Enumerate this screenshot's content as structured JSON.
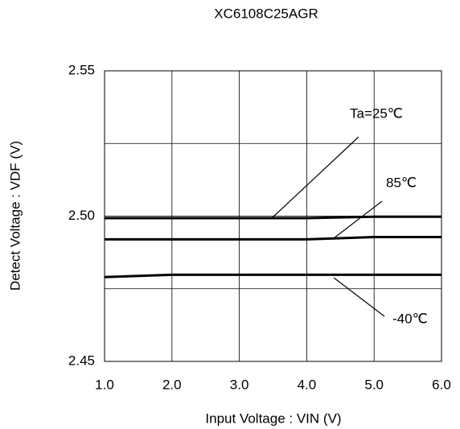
{
  "chart_data": {
    "type": "line",
    "title": "XC6108C25AGR",
    "x_label": "Input Voltage : VIN (V)",
    "y_label": "Detect Voltage : VDF (V)",
    "x": [
      1.0,
      2.0,
      3.0,
      4.0,
      5.0,
      6.0
    ],
    "series": [
      {
        "name": "Ta=25℃",
        "color": "#000000",
        "values": [
          2.4993,
          2.4993,
          2.4993,
          2.4993,
          2.4998,
          2.4998
        ]
      },
      {
        "name": "85℃",
        "color": "#000000",
        "values": [
          2.492,
          2.492,
          2.492,
          2.492,
          2.4928,
          2.4928
        ]
      },
      {
        "name": "-40℃",
        "color": "#000000",
        "values": [
          2.479,
          2.4798,
          2.4798,
          2.4798,
          2.4798,
          2.4798
        ]
      }
    ],
    "xlim": [
      1.0,
      6.0
    ],
    "ylim": [
      2.45,
      2.55
    ],
    "xticks": [
      {
        "value": 1.0,
        "label": "1.0"
      },
      {
        "value": 2.0,
        "label": "2.0"
      },
      {
        "value": 3.0,
        "label": "3.0"
      },
      {
        "value": 4.0,
        "label": "4.0"
      },
      {
        "value": 5.0,
        "label": "5.0"
      },
      {
        "value": 6.0,
        "label": "6.0"
      }
    ],
    "yticks": [
      2.45,
      {
        "value": 2.5,
        "label": "2.50"
      },
      2.55
    ],
    "ygrid": [
      2.475,
      2.525
    ],
    "grid": true
  }
}
